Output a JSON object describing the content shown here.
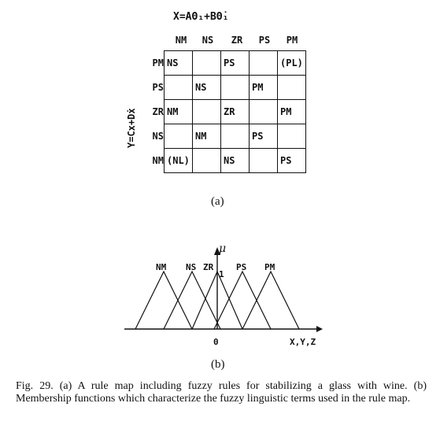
{
  "rule_map": {
    "x_expression": "X=AΘ₁+BΘ̇₁",
    "y_expression": "Y=Cx+Dẋ",
    "columns": [
      "NM",
      "NS",
      "ZR",
      "PS",
      "PM"
    ],
    "rows": [
      {
        "label": "PM",
        "cells": [
          "NS",
          "",
          "PS",
          "",
          "(PL)"
        ]
      },
      {
        "label": "PS",
        "cells": [
          "",
          "NS",
          "",
          "PM",
          ""
        ]
      },
      {
        "label": "ZR",
        "cells": [
          "NM",
          "",
          "ZR",
          "",
          "PM"
        ]
      },
      {
        "label": "NS",
        "cells": [
          "",
          "NM",
          "",
          "PS",
          ""
        ]
      },
      {
        "label": "NM",
        "cells": [
          "(NL)",
          "",
          "NS",
          "",
          "PS"
        ]
      }
    ],
    "sublabel": "(a)"
  },
  "membership": {
    "y_axis_symbol": "μ",
    "peak_value_label": "1",
    "origin_label": "0",
    "x_axis_label": "X,Y,Z",
    "sets": [
      "NM",
      "NS",
      "ZR",
      "PS",
      "PM"
    ],
    "sublabel": "(b)"
  },
  "caption": "Fig. 29.   (a) A rule map including fuzzy rules for stabilizing a glass with wine. (b) Membership functions which characterize the fuzzy linguistic terms used in the rule map."
}
